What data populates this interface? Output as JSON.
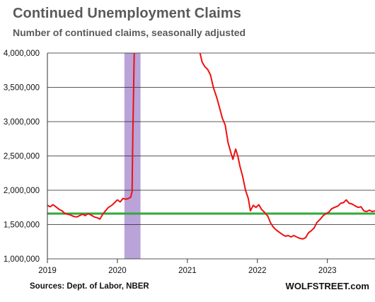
{
  "chart_data": {
    "type": "line",
    "title": "Continued  Unemployment  Claims",
    "subtitle": "Number of continued claims, seasonally adjusted",
    "xlabel": "",
    "ylabel": "",
    "x_ticks": [
      "2019",
      "2020",
      "2021",
      "2022",
      "2023"
    ],
    "y_ticks": [
      "1,000,000",
      "1,500,000",
      "2,000,000",
      "2,500,000",
      "3,000,000",
      "3,500,000",
      "4,000,000"
    ],
    "xlim": [
      2019.0,
      2023.68
    ],
    "ylim": [
      1000000,
      4000000
    ],
    "recession_band": [
      2020.1,
      2020.33
    ],
    "reference_line": 1660000,
    "colors": {
      "series": "#ee1111",
      "reference": "#2eaa3a",
      "band": "#b9a3d8",
      "grid": "#222222"
    },
    "series": [
      {
        "color": "#ee1111",
        "points": [
          [
            2019.0,
            1780000
          ],
          [
            2019.04,
            1760000
          ],
          [
            2019.08,
            1790000
          ],
          [
            2019.12,
            1760000
          ],
          [
            2019.17,
            1720000
          ],
          [
            2019.21,
            1700000
          ],
          [
            2019.25,
            1660000
          ],
          [
            2019.29,
            1650000
          ],
          [
            2019.33,
            1640000
          ],
          [
            2019.37,
            1620000
          ],
          [
            2019.42,
            1610000
          ],
          [
            2019.46,
            1630000
          ],
          [
            2019.5,
            1650000
          ],
          [
            2019.54,
            1630000
          ],
          [
            2019.58,
            1660000
          ],
          [
            2019.62,
            1640000
          ],
          [
            2019.67,
            1610000
          ],
          [
            2019.71,
            1600000
          ],
          [
            2019.75,
            1580000
          ],
          [
            2019.79,
            1650000
          ],
          [
            2019.83,
            1700000
          ],
          [
            2019.87,
            1750000
          ],
          [
            2019.92,
            1780000
          ],
          [
            2019.96,
            1820000
          ],
          [
            2020.0,
            1860000
          ],
          [
            2020.04,
            1830000
          ],
          [
            2020.08,
            1880000
          ],
          [
            2020.12,
            1870000
          ],
          [
            2020.16,
            1880000
          ],
          [
            2020.19,
            1900000
          ],
          [
            2020.21,
            1980000
          ],
          [
            2020.22,
            2800000
          ],
          [
            2020.24,
            4000000
          ],
          [
            2021.18,
            4000000
          ],
          [
            2021.21,
            3870000
          ],
          [
            2021.25,
            3800000
          ],
          [
            2021.29,
            3760000
          ],
          [
            2021.33,
            3680000
          ],
          [
            2021.37,
            3500000
          ],
          [
            2021.42,
            3350000
          ],
          [
            2021.46,
            3200000
          ],
          [
            2021.5,
            3050000
          ],
          [
            2021.54,
            2950000
          ],
          [
            2021.58,
            2700000
          ],
          [
            2021.62,
            2550000
          ],
          [
            2021.65,
            2450000
          ],
          [
            2021.69,
            2600000
          ],
          [
            2021.72,
            2500000
          ],
          [
            2021.75,
            2350000
          ],
          [
            2021.79,
            2200000
          ],
          [
            2021.83,
            2000000
          ],
          [
            2021.87,
            1880000
          ],
          [
            2021.9,
            1700000
          ],
          [
            2021.94,
            1780000
          ],
          [
            2021.98,
            1750000
          ],
          [
            2022.02,
            1790000
          ],
          [
            2022.06,
            1720000
          ],
          [
            2022.1,
            1680000
          ],
          [
            2022.15,
            1620000
          ],
          [
            2022.19,
            1520000
          ],
          [
            2022.23,
            1460000
          ],
          [
            2022.27,
            1420000
          ],
          [
            2022.31,
            1390000
          ],
          [
            2022.35,
            1360000
          ],
          [
            2022.4,
            1330000
          ],
          [
            2022.44,
            1340000
          ],
          [
            2022.48,
            1320000
          ],
          [
            2022.52,
            1340000
          ],
          [
            2022.56,
            1320000
          ],
          [
            2022.6,
            1300000
          ],
          [
            2022.65,
            1290000
          ],
          [
            2022.69,
            1310000
          ],
          [
            2022.73,
            1380000
          ],
          [
            2022.77,
            1410000
          ],
          [
            2022.81,
            1450000
          ],
          [
            2022.85,
            1530000
          ],
          [
            2022.9,
            1580000
          ],
          [
            2022.94,
            1630000
          ],
          [
            2022.98,
            1660000
          ],
          [
            2023.02,
            1680000
          ],
          [
            2023.06,
            1730000
          ],
          [
            2023.1,
            1750000
          ],
          [
            2023.15,
            1770000
          ],
          [
            2023.19,
            1810000
          ],
          [
            2023.23,
            1820000
          ],
          [
            2023.27,
            1860000
          ],
          [
            2023.31,
            1810000
          ],
          [
            2023.35,
            1800000
          ],
          [
            2023.4,
            1770000
          ],
          [
            2023.44,
            1750000
          ],
          [
            2023.48,
            1760000
          ],
          [
            2023.52,
            1700000
          ],
          [
            2023.56,
            1690000
          ],
          [
            2023.6,
            1710000
          ],
          [
            2023.64,
            1690000
          ],
          [
            2023.68,
            1700000
          ]
        ]
      }
    ]
  },
  "footer": {
    "source": "Sources: Dept. of Labor, NBER",
    "site": "WOLFSTREET.com"
  }
}
